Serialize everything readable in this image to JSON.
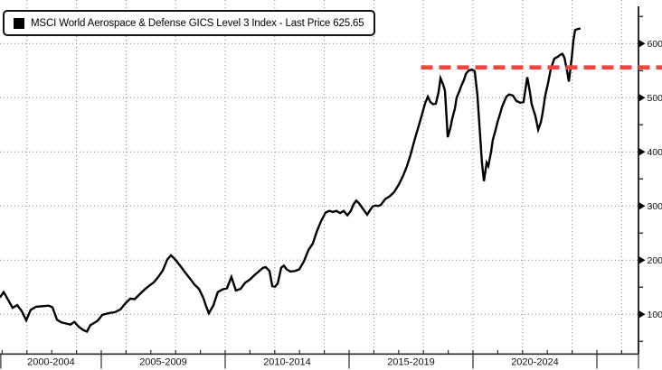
{
  "legend": {
    "marker_icon": "black-square-marker",
    "label": "MSCI World Aerospace & Defense GICS Level 3 Index - Last Price 625.65"
  },
  "colors": {
    "line": "#000000",
    "reference_line": "#ee4540",
    "grid": "#8a8a8a",
    "axis": "#2b2b2b",
    "text": "#111111",
    "background": "#ffffff"
  },
  "chart_data": {
    "type": "line",
    "title": "MSCI World Aerospace & Defense GICS Level 3 Index",
    "last_price": 625.65,
    "grid_style": "dotted",
    "legend_position": "top-left",
    "x_axis": {
      "label_cells": [
        "2000-2004",
        "2005-2009",
        "2010-2014",
        "2015-2019",
        "2020-2024"
      ],
      "cell_start_years": [
        2000,
        2005,
        2010,
        2015,
        2020
      ],
      "cell_end_years": [
        2005,
        2010,
        2015,
        2020,
        2025
      ],
      "axis_end_year": 2026.68,
      "minor_tick_step_years": 1,
      "grid_first_year": 2002,
      "grid_step_years": 2,
      "grid_last_year": 2026
    },
    "y_axis": {
      "side": "right",
      "ticks": [
        100,
        200,
        300,
        400,
        500,
        600
      ],
      "minor_ticks": [
        50,
        150,
        250,
        350,
        450,
        550,
        650
      ],
      "ylim": [
        27,
        669
      ],
      "tick_marker": "right-arrow"
    },
    "reference_line": {
      "level": 556,
      "start_year": 2017.9,
      "to_right_edge": true,
      "style": "dashed",
      "color": "#ee4540"
    },
    "series": [
      {
        "name": "MSCI World Aerospace & Defense GICS Level 3 Index",
        "color": "#000000",
        "points": [
          [
            2000.91,
            131
          ],
          [
            2001.06,
            141
          ],
          [
            2001.2,
            130
          ],
          [
            2001.42,
            112
          ],
          [
            2001.61,
            117
          ],
          [
            2001.79,
            106
          ],
          [
            2001.97,
            89
          ],
          [
            2002.15,
            108
          ],
          [
            2002.37,
            114
          ],
          [
            2002.63,
            115
          ],
          [
            2002.88,
            116
          ],
          [
            2003.03,
            113
          ],
          [
            2003.21,
            90
          ],
          [
            2003.39,
            85
          ],
          [
            2003.58,
            83
          ],
          [
            2003.76,
            81
          ],
          [
            2003.91,
            86
          ],
          [
            2004.09,
            77
          ],
          [
            2004.27,
            71
          ],
          [
            2004.42,
            68
          ],
          [
            2004.56,
            80
          ],
          [
            2004.71,
            84
          ],
          [
            2004.85,
            88
          ],
          [
            2005.04,
            99
          ],
          [
            2005.29,
            102
          ],
          [
            2005.55,
            104
          ],
          [
            2005.77,
            109
          ],
          [
            2005.99,
            121
          ],
          [
            2006.17,
            129
          ],
          [
            2006.35,
            128
          ],
          [
            2006.57,
            138
          ],
          [
            2006.75,
            146
          ],
          [
            2006.94,
            153
          ],
          [
            2007.12,
            159
          ],
          [
            2007.3,
            169
          ],
          [
            2007.48,
            181
          ],
          [
            2007.66,
            201
          ],
          [
            2007.81,
            209
          ],
          [
            2007.99,
            201
          ],
          [
            2008.21,
            188
          ],
          [
            2008.39,
            177
          ],
          [
            2008.58,
            166
          ],
          [
            2008.76,
            155
          ],
          [
            2008.94,
            147
          ],
          [
            2009.12,
            130
          ],
          [
            2009.23,
            115
          ],
          [
            2009.34,
            102
          ],
          [
            2009.52,
            116
          ],
          [
            2009.7,
            141
          ],
          [
            2009.89,
            146
          ],
          [
            2010.07,
            148
          ],
          [
            2010.25,
            169
          ],
          [
            2010.43,
            144
          ],
          [
            2010.62,
            147
          ],
          [
            2010.8,
            158
          ],
          [
            2010.99,
            164
          ],
          [
            2011.17,
            172
          ],
          [
            2011.35,
            179
          ],
          [
            2011.53,
            186
          ],
          [
            2011.64,
            187
          ],
          [
            2011.79,
            180
          ],
          [
            2011.9,
            152
          ],
          [
            2012.01,
            151
          ],
          [
            2012.12,
            157
          ],
          [
            2012.26,
            186
          ],
          [
            2012.37,
            190
          ],
          [
            2012.48,
            183
          ],
          [
            2012.63,
            179
          ],
          [
            2012.81,
            180
          ],
          [
            2012.99,
            183
          ],
          [
            2013.18,
            198
          ],
          [
            2013.36,
            219
          ],
          [
            2013.54,
            231
          ],
          [
            2013.69,
            252
          ],
          [
            2013.87,
            272
          ],
          [
            2014.05,
            288
          ],
          [
            2014.2,
            291
          ],
          [
            2014.34,
            289
          ],
          [
            2014.49,
            291
          ],
          [
            2014.64,
            287
          ],
          [
            2014.78,
            291
          ],
          [
            2014.93,
            283
          ],
          [
            2015.07,
            291
          ],
          [
            2015.18,
            303
          ],
          [
            2015.29,
            310
          ],
          [
            2015.4,
            305
          ],
          [
            2015.51,
            298
          ],
          [
            2015.62,
            291
          ],
          [
            2015.73,
            284
          ],
          [
            2015.84,
            292
          ],
          [
            2015.95,
            299
          ],
          [
            2016.06,
            301
          ],
          [
            2016.17,
            300
          ],
          [
            2016.28,
            302
          ],
          [
            2016.46,
            313
          ],
          [
            2016.64,
            318
          ],
          [
            2016.82,
            326
          ],
          [
            2017.01,
            340
          ],
          [
            2017.19,
            357
          ],
          [
            2017.34,
            374
          ],
          [
            2017.48,
            395
          ],
          [
            2017.66,
            425
          ],
          [
            2017.81,
            448
          ],
          [
            2017.96,
            472
          ],
          [
            2018.07,
            490
          ],
          [
            2018.18,
            502
          ],
          [
            2018.28,
            492
          ],
          [
            2018.39,
            488
          ],
          [
            2018.5,
            489
          ],
          [
            2018.61,
            510
          ],
          [
            2018.69,
            536
          ],
          [
            2018.8,
            524
          ],
          [
            2018.87,
            513
          ],
          [
            2018.98,
            427
          ],
          [
            2019.09,
            445
          ],
          [
            2019.16,
            461
          ],
          [
            2019.27,
            480
          ],
          [
            2019.34,
            500
          ],
          [
            2019.45,
            512
          ],
          [
            2019.53,
            522
          ],
          [
            2019.64,
            533
          ],
          [
            2019.71,
            544
          ],
          [
            2019.82,
            550
          ],
          [
            2019.96,
            552
          ],
          [
            2020.07,
            549
          ],
          [
            2020.18,
            505
          ],
          [
            2020.26,
            450
          ],
          [
            2020.36,
            380
          ],
          [
            2020.44,
            346
          ],
          [
            2020.55,
            380
          ],
          [
            2020.62,
            374
          ],
          [
            2020.73,
            400
          ],
          [
            2020.8,
            422
          ],
          [
            2020.91,
            440
          ],
          [
            2020.99,
            455
          ],
          [
            2021.09,
            470
          ],
          [
            2021.17,
            483
          ],
          [
            2021.28,
            495
          ],
          [
            2021.35,
            502
          ],
          [
            2021.46,
            506
          ],
          [
            2021.61,
            504
          ],
          [
            2021.75,
            494
          ],
          [
            2021.9,
            491
          ],
          [
            2022.04,
            492
          ],
          [
            2022.19,
            538
          ],
          [
            2022.3,
            510
          ],
          [
            2022.37,
            488
          ],
          [
            2022.52,
            466
          ],
          [
            2022.63,
            441
          ],
          [
            2022.74,
            455
          ],
          [
            2022.81,
            472
          ],
          [
            2022.92,
            505
          ],
          [
            2023.03,
            527
          ],
          [
            2023.14,
            553
          ],
          [
            2023.28,
            572
          ],
          [
            2023.43,
            576
          ],
          [
            2023.54,
            580
          ],
          [
            2023.61,
            581
          ],
          [
            2023.69,
            574
          ],
          [
            2023.8,
            549
          ],
          [
            2023.87,
            530
          ],
          [
            2023.98,
            572
          ],
          [
            2024.05,
            605
          ],
          [
            2024.12,
            625
          ],
          [
            2024.23,
            627
          ],
          [
            2024.34,
            628
          ]
        ]
      }
    ]
  }
}
